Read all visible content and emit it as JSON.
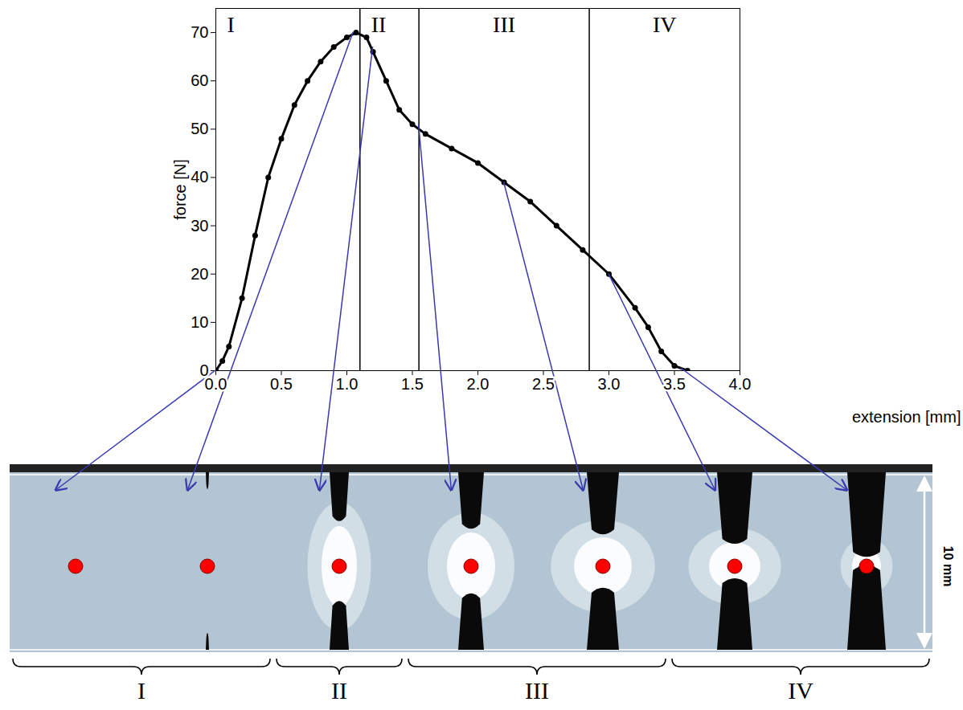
{
  "chart_data": {
    "type": "line",
    "x_label": "extension [mm]",
    "y_label": "force [N]",
    "x": [
      0,
      0.05,
      0.1,
      0.2,
      0.3,
      0.4,
      0.5,
      0.6,
      0.7,
      0.8,
      0.9,
      1.0,
      1.07,
      1.15,
      1.2,
      1.3,
      1.4,
      1.5,
      1.6,
      1.8,
      2.0,
      2.2,
      2.4,
      2.6,
      2.8,
      3.0,
      3.2,
      3.3,
      3.4,
      3.5,
      3.6
    ],
    "values": [
      0,
      2,
      5,
      15,
      28,
      40,
      48,
      55,
      60,
      64,
      67,
      69,
      70,
      69,
      66,
      60,
      54,
      51,
      49,
      46,
      43,
      39,
      35,
      30,
      25,
      20,
      13,
      9,
      4,
      1,
      0
    ],
    "color": "#000000",
    "marker": "circle",
    "grid": false,
    "xlim": [
      0,
      4
    ],
    "ylim": [
      0,
      75
    ],
    "xticks": [
      {
        "value": 0,
        "label": "0.0"
      },
      {
        "value": 0.5,
        "label": "0.5"
      },
      {
        "value": 1,
        "label": "1.0"
      },
      {
        "value": 1.5,
        "label": "1.5"
      },
      {
        "value": 2,
        "label": "2.0"
      },
      {
        "value": 2.5,
        "label": "2.5"
      },
      {
        "value": 3,
        "label": "3.0"
      },
      {
        "value": 3.5,
        "label": "3.5"
      },
      {
        "value": 4,
        "label": "4.0"
      }
    ],
    "yticks": [
      0,
      10,
      20,
      30,
      40,
      50,
      60,
      70
    ],
    "regions": {
      "labels": [
        "I",
        "II",
        "III",
        "IV"
      ],
      "boundaries": [
        1.1,
        1.55,
        2.85
      ]
    },
    "snapshots": {
      "extension": [
        0,
        1.05,
        1.2,
        1.55,
        2.2,
        3.0,
        3.55
      ],
      "force": [
        0,
        70,
        67,
        51,
        39,
        20,
        0.5
      ]
    },
    "scale_bar": "10 mm",
    "panel_groups": [
      {
        "label": "I",
        "count": 2
      },
      {
        "label": "II",
        "count": 1
      },
      {
        "label": "III",
        "count": 2
      },
      {
        "label": "IV",
        "count": 2
      }
    ]
  }
}
